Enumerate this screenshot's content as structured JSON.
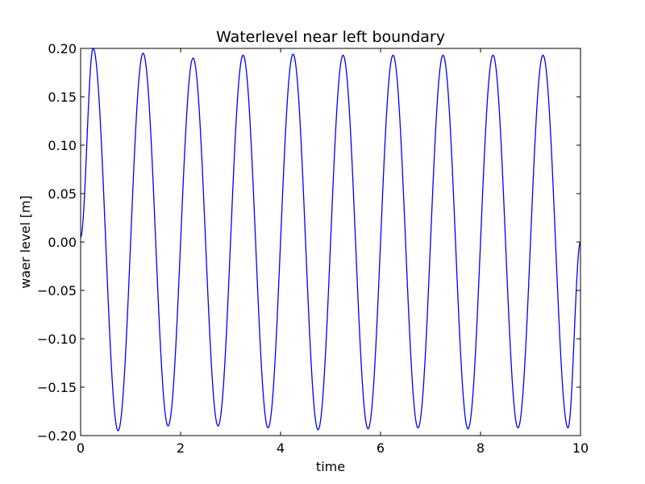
{
  "chart_data": {
    "type": "line",
    "title": "Waterlevel near left boundary",
    "xlabel": "time",
    "ylabel": "waer level [m]",
    "xlim": [
      0,
      10
    ],
    "ylim": [
      -0.2,
      0.2
    ],
    "x_ticks": [
      0,
      2,
      4,
      6,
      8,
      10
    ],
    "x_tick_labels": [
      "0",
      "2",
      "4",
      "6",
      "8",
      "10"
    ],
    "y_ticks": [
      -0.2,
      -0.15,
      -0.1,
      -0.05,
      0.0,
      0.05,
      0.1,
      0.15,
      0.2
    ],
    "y_tick_labels": [
      "−0.20",
      "−0.15",
      "−0.10",
      "−0.05",
      "0.00",
      "0.05",
      "0.10",
      "0.15",
      "0.20"
    ],
    "grid": false,
    "legend": "none",
    "series": [
      {
        "color": "#0000ff",
        "x": [
          0,
          0.25,
          0.75,
          1.25,
          1.75,
          2.25,
          2.75,
          3.25,
          3.75,
          4.25,
          4.75,
          5.25,
          5.75,
          6.25,
          6.75,
          7.25,
          7.75,
          8.25,
          8.75,
          9.25,
          9.75,
          10
        ],
        "y": [
          0.005,
          0.2,
          -0.195,
          0.195,
          -0.19,
          0.19,
          -0.19,
          0.193,
          -0.192,
          0.194,
          -0.194,
          0.193,
          -0.193,
          0.193,
          -0.192,
          0.193,
          -0.193,
          0.193,
          -0.192,
          0.193,
          -0.192,
          0.0
        ]
      }
    ]
  }
}
